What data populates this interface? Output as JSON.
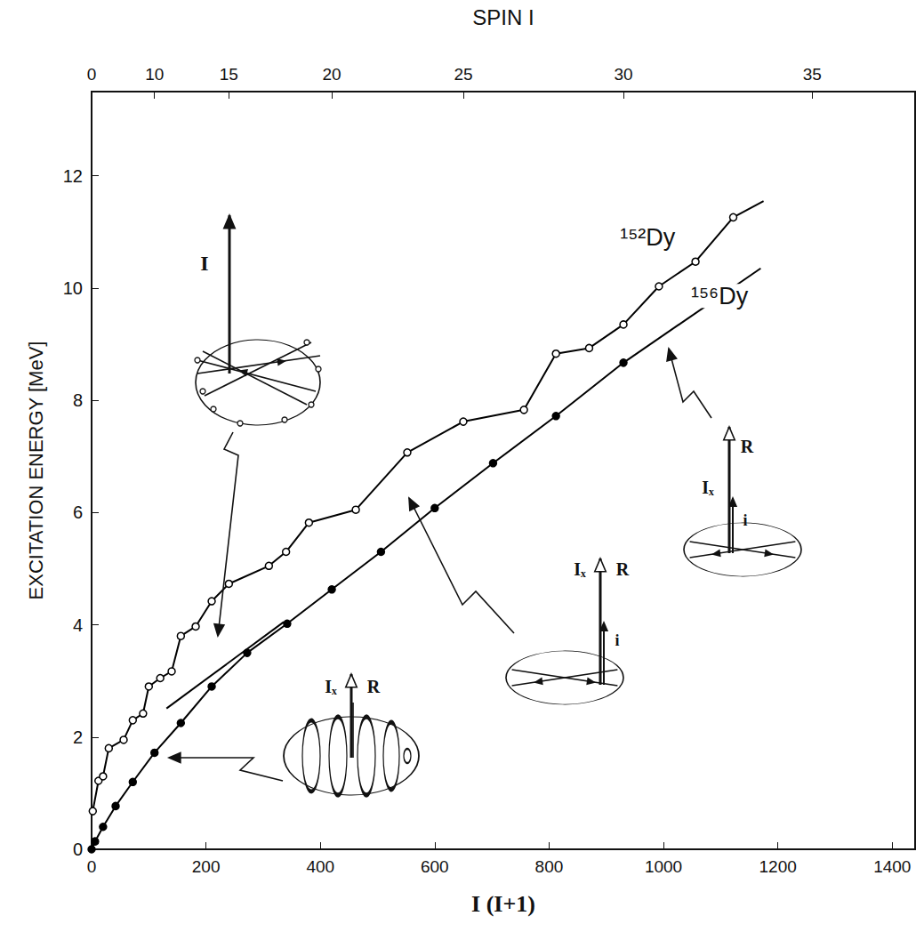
{
  "chart_data": {
    "type": "line",
    "x_label": "I (I+1)",
    "y_label": "EXCITATION ENERGY [MeV]",
    "x2_label": "SPIN I",
    "xlim": [
      0,
      1440
    ],
    "xticks": [
      0,
      200,
      400,
      600,
      800,
      1000,
      1200,
      1400
    ],
    "ylim": [
      0,
      13.5
    ],
    "yticks": [
      0,
      2,
      4,
      6,
      8,
      10,
      12
    ],
    "x2ticks": [
      {
        "value": 0,
        "label": "0"
      },
      {
        "value": 110,
        "label": "10"
      },
      {
        "value": 240,
        "label": "15"
      },
      {
        "value": 420,
        "label": "20"
      },
      {
        "value": 650,
        "label": "25"
      },
      {
        "value": 930,
        "label": "30"
      },
      {
        "value": 1260,
        "label": "35"
      }
    ],
    "grid": false,
    "series": [
      {
        "color": "#000000",
        "marker": "circle_open",
        "x": [
          2,
          12,
          20,
          30,
          56,
          72,
          90,
          100,
          120,
          140,
          156,
          182,
          210,
          240,
          310,
          340,
          380,
          462,
          552,
          650,
          756,
          812,
          870,
          930,
          992,
          1056,
          1122
        ],
        "values": [
          0.68,
          1.22,
          1.3,
          1.8,
          1.95,
          2.3,
          2.42,
          2.9,
          3.05,
          3.17,
          3.8,
          3.97,
          4.42,
          4.73,
          5.05,
          5.3,
          5.82,
          6.05,
          7.07,
          7.62,
          7.83,
          8.83,
          8.93,
          9.35,
          10.03,
          10.47,
          11.26
        ]
      },
      {
        "color": "#000000",
        "marker": "circle_filled",
        "x": [
          0,
          6,
          20,
          42,
          72,
          110,
          156,
          210,
          272,
          342,
          420,
          506,
          600,
          702,
          812,
          930
        ],
        "values": [
          0,
          0.14,
          0.4,
          0.77,
          1.2,
          1.72,
          2.25,
          2.9,
          3.5,
          4.02,
          4.63,
          5.3,
          6.08,
          6.88,
          7.72,
          8.67
        ]
      },
      {
        "color": "#000000",
        "marker": "none",
        "x": [
          1122,
          1175
        ],
        "values": [
          11.26,
          11.55
        ]
      },
      {
        "color": "#000000",
        "marker": "none",
        "x": [
          930,
          1170
        ],
        "values": [
          8.67,
          10.35
        ]
      },
      {
        "color": "#000000",
        "marker": "none",
        "x": [
          131,
          336
        ],
        "values": [
          2.51,
          4.05
        ]
      }
    ],
    "annotations": [
      {
        "text": "¹⁵²Dy",
        "x": 924,
        "y": 10.9
      },
      {
        "text": "¹⁵⁶Dy",
        "x": 1048,
        "y": 9.86
      }
    ],
    "insets": [
      {
        "labels": [
          "I"
        ]
      },
      {
        "labels": [
          "Iₓ",
          "R"
        ]
      },
      {
        "labels": [
          "Iₓ",
          "R",
          "i"
        ]
      },
      {
        "labels": [
          "Iₓ",
          "R",
          "i"
        ]
      }
    ]
  }
}
